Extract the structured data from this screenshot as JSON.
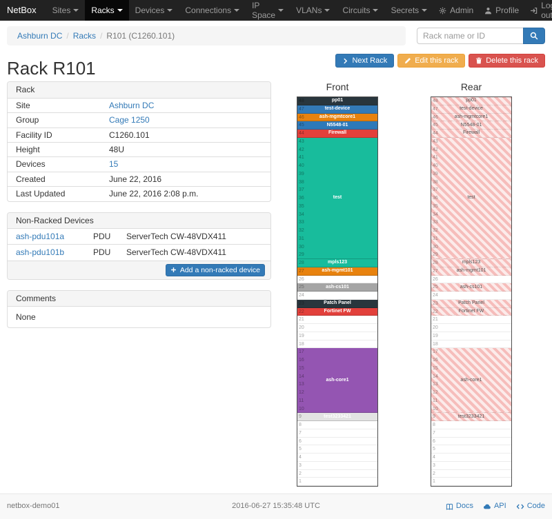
{
  "navbar": {
    "brand": "NetBox",
    "items": [
      {
        "label": "Sites",
        "active": false
      },
      {
        "label": "Racks",
        "active": true
      },
      {
        "label": "Devices",
        "active": false
      },
      {
        "label": "Connections",
        "active": false
      },
      {
        "label": "IP Space",
        "active": false
      },
      {
        "label": "VLANs",
        "active": false
      },
      {
        "label": "Circuits",
        "active": false
      },
      {
        "label": "Secrets",
        "active": false
      }
    ],
    "right_items": [
      {
        "label": "Admin",
        "icon": "gear-icon"
      },
      {
        "label": "Profile",
        "icon": "user-icon"
      },
      {
        "label": "Log out",
        "icon": "log-out-icon"
      }
    ]
  },
  "breadcrumb": [
    {
      "label": "Ashburn DC",
      "is_link": true
    },
    {
      "label": "Racks",
      "is_link": true
    },
    {
      "label": "R101 (C1260.101)",
      "is_link": false
    }
  ],
  "search": {
    "placeholder": "Rack name or ID"
  },
  "actions": [
    {
      "label": "Next Rack",
      "icon": "chevron-right-icon",
      "style": "primary"
    },
    {
      "label": "Edit this rack",
      "icon": "pencil-icon",
      "style": "warning"
    },
    {
      "label": "Delete this rack",
      "icon": "trash-icon",
      "style": "danger"
    }
  ],
  "page_title": "Rack R101",
  "rack_panel": {
    "title": "Rack",
    "rows": [
      {
        "label": "Site",
        "value": "Ashburn DC",
        "is_link": true
      },
      {
        "label": "Group",
        "value": "Cage 1250",
        "is_link": true
      },
      {
        "label": "Facility ID",
        "value": "C1260.101",
        "is_link": false
      },
      {
        "label": "Height",
        "value": "48U",
        "is_link": false
      },
      {
        "label": "Devices",
        "value": "15",
        "is_link": true
      },
      {
        "label": "Created",
        "value": "June 22, 2016",
        "is_link": false
      },
      {
        "label": "Last Updated",
        "value": "June 22, 2016 2:08 p.m.",
        "is_link": false
      }
    ]
  },
  "non_racked_panel": {
    "title": "Non-Racked Devices",
    "devices": [
      {
        "name": "ash-pdu101a",
        "type": "PDU",
        "model": "ServerTech CW-48VDX411"
      },
      {
        "name": "ash-pdu101b",
        "type": "PDU",
        "model": "ServerTech CW-48VDX411"
      }
    ],
    "add_button": "Add a non-racked device"
  },
  "comments_panel": {
    "title": "Comments",
    "body": "None"
  },
  "elevations": {
    "front_title": "Front",
    "rear_title": "Rear",
    "units_total": 48,
    "devices": [
      {
        "name": "pp01",
        "top_unit": 48,
        "height_units": 1,
        "color": "#29363d"
      },
      {
        "name": "test-device",
        "top_unit": 47,
        "height_units": 1,
        "color": "#337ab7"
      },
      {
        "name": "ash-mgmtcore1",
        "top_unit": 46,
        "height_units": 1,
        "color": "#e8820e"
      },
      {
        "name": "N5548-01",
        "top_unit": 45,
        "height_units": 1,
        "color": "#2e79b9"
      },
      {
        "name": "Firewall",
        "top_unit": 44,
        "height_units": 1,
        "color": "#e2403b"
      },
      {
        "name": "test",
        "top_unit": 43,
        "height_units": 15,
        "color": "#18bc9c"
      },
      {
        "name": "mpls123",
        "top_unit": 28,
        "height_units": 1,
        "color": "#18bc9c"
      },
      {
        "name": "ash-mgmt101",
        "top_unit": 27,
        "height_units": 1,
        "color": "#e8820e"
      },
      {
        "name": "ash-cs101",
        "top_unit": 25,
        "height_units": 1,
        "color": "#a5a5a5"
      },
      {
        "name": "Patch Panel",
        "top_unit": 23,
        "height_units": 1,
        "color": "#29363d"
      },
      {
        "name": "Fortinet FW",
        "top_unit": 22,
        "height_units": 1,
        "color": "#e2403b"
      },
      {
        "name": "ash-core1",
        "top_unit": 17,
        "height_units": 8,
        "color": "#9455b2"
      },
      {
        "name": "test3233421",
        "top_unit": 9,
        "height_units": 1,
        "color": "#e3e3e3",
        "label_color": "#ffffff"
      }
    ]
  },
  "footer": {
    "hostname": "netbox-demo01",
    "timestamp": "2016-06-27 15:35:48 UTC",
    "links": [
      {
        "label": "Docs",
        "icon": "book-icon"
      },
      {
        "label": "API",
        "icon": "cloud-icon"
      },
      {
        "label": "Code",
        "icon": "code-icon"
      }
    ]
  },
  "theme": {
    "link": "#337ab7",
    "primary": "#337ab7",
    "warning": "#f0ad4e",
    "danger": "#d9534f",
    "navbar_bg": "#222222",
    "rear_hatch": "#f6bdbb"
  }
}
